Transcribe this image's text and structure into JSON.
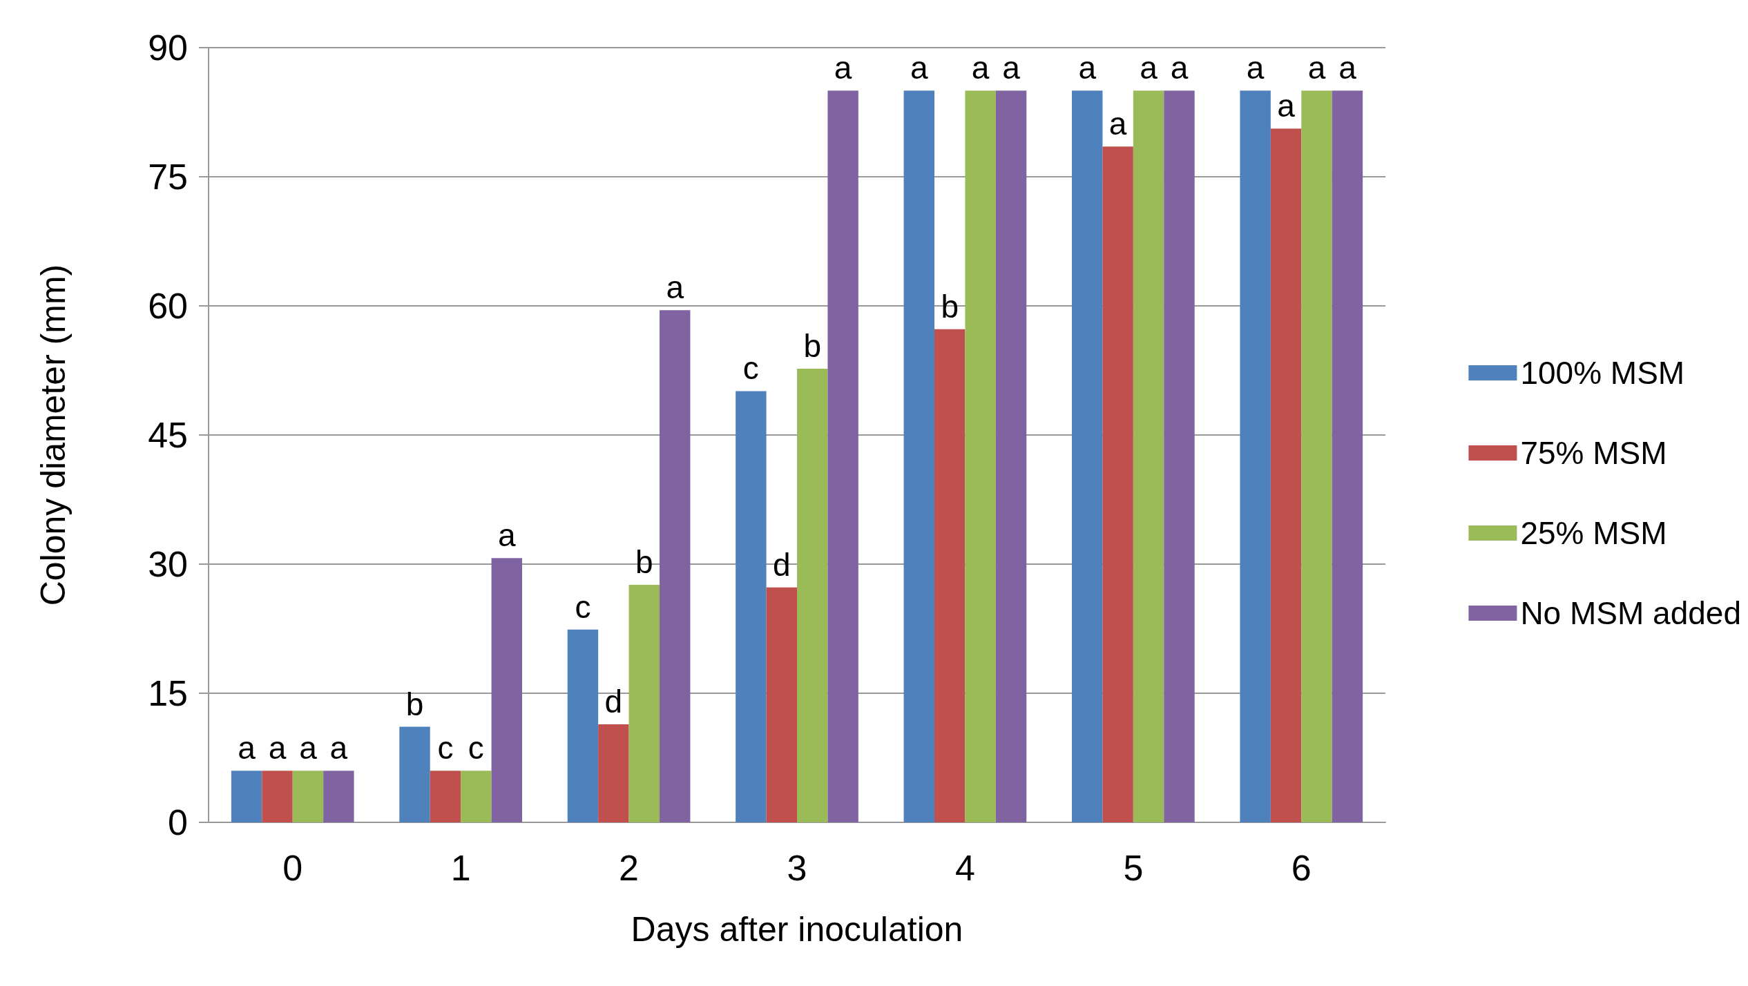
{
  "chart_data": {
    "type": "bar",
    "xlabel": "Days after inoculation",
    "ylabel": "Colony diameter (mm)",
    "categories": [
      "0",
      "1",
      "2",
      "3",
      "4",
      "5",
      "6"
    ],
    "series": [
      {
        "name": "100% MSM",
        "color": "#4f81bd",
        "values": [
          6,
          11.1,
          22.4,
          50.1,
          85,
          85,
          85
        ],
        "value_labels": [
          "a",
          "b",
          "c",
          "c",
          "a",
          "a",
          "a"
        ]
      },
      {
        "name": "75% MSM",
        "color": "#c0504d",
        "values": [
          6,
          6,
          11.4,
          27.3,
          57.3,
          78.5,
          80.6
        ],
        "value_labels": [
          "a",
          "c",
          "d",
          "d",
          "b",
          "a",
          "a"
        ]
      },
      {
        "name": "25% MSM",
        "color": "#9bbb59",
        "values": [
          6,
          6,
          27.6,
          52.7,
          85,
          85,
          85
        ],
        "value_labels": [
          "a",
          "c",
          "b",
          "b",
          "a",
          "a",
          "a"
        ]
      },
      {
        "name": "No MSM added",
        "color": "#8064a2",
        "values": [
          6,
          30.7,
          59.5,
          85,
          85,
          85,
          85
        ],
        "value_labels": [
          "a",
          "a",
          "a",
          "a",
          "a",
          "a",
          "a"
        ]
      }
    ],
    "ylim": [
      0,
      90
    ],
    "yticks": [
      0,
      15,
      30,
      45,
      60,
      75,
      90
    ],
    "grid": "y",
    "legend": "right"
  }
}
